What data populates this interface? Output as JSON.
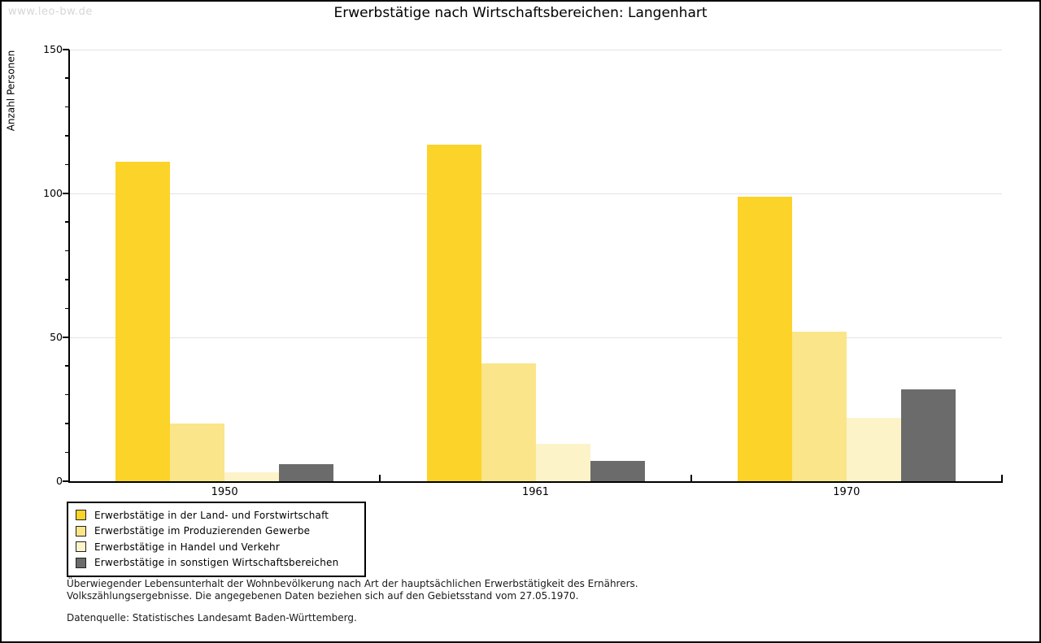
{
  "watermark": "www.leo-bw.de",
  "title": "Erwerbstätige nach Wirtschaftsbereichen: Langenhart",
  "chart_data": {
    "type": "bar",
    "title": "Erwerbstätige nach Wirtschaftsbereichen: Langenhart",
    "xlabel": "",
    "ylabel": "Anzahl Personen",
    "categories": [
      "1950",
      "1961",
      "1970"
    ],
    "series": [
      {
        "name": "Erwerbstätige in der Land- und Forstwirtschaft",
        "color": "#FCD328",
        "values": [
          111,
          117,
          99
        ]
      },
      {
        "name": "Erwerbstätige im Produzierenden Gewerbe",
        "color": "#FBE58A",
        "values": [
          20,
          41,
          52
        ]
      },
      {
        "name": "Erwerbstätige in Handel und Verkehr",
        "color": "#FCF3C9",
        "values": [
          3,
          13,
          22
        ]
      },
      {
        "name": "Erwerbstätige in sonstigen Wirtschaftsbereichen",
        "color": "#6B6B6B",
        "values": [
          6,
          7,
          32
        ]
      }
    ],
    "ylim": [
      0,
      150
    ],
    "yticks": [
      0,
      50,
      100,
      150
    ],
    "minor_tick_step": 10,
    "grid": true,
    "legend_position": "bottom-left"
  },
  "footnotes": {
    "line1": "Überwiegender Lebensunterhalt der Wohnbevölkerung nach Art der hauptsächlichen Erwerbstätigkeit des Ernährers.",
    "line2": "Volkszählungsergebnisse. Die angegebenen Daten beziehen sich auf den Gebietsstand vom 27.05.1970.",
    "source": "Datenquelle: Statistisches Landesamt Baden-Württemberg."
  },
  "colors": {
    "gridline": "#e2e2e2",
    "axis": "#000000",
    "watermark": "#d6d6d6"
  }
}
